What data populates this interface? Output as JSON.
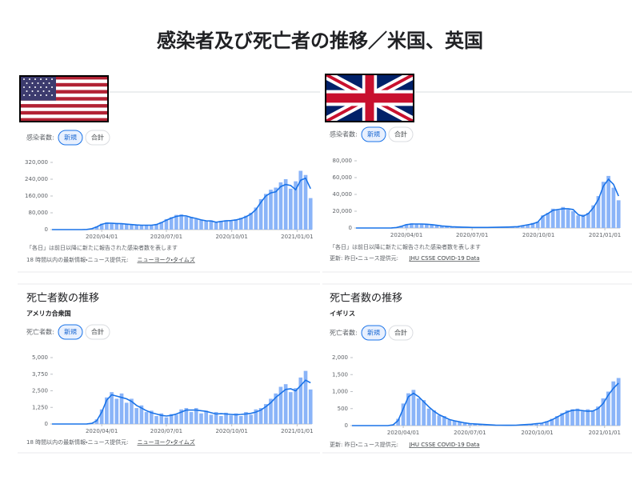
{
  "title": "感染者及び死亡者の推移／米国、英国",
  "panels": [
    {
      "filter_label": "感染者数:",
      "buttons": [
        "新規",
        "合計"
      ],
      "note": "「各日」は前日以降に新たに報告された感染者数を表します",
      "source_prefix": "18 時間以内の最新情報・ニュース提供元: ",
      "source_link": "ニューヨーク・タイムズ"
    },
    {
      "filter_label": "感染者数:",
      "buttons": [
        "新規",
        "合計"
      ],
      "note": "「各日」は前日以降に新たに報告された感染者数を表します",
      "source_prefix": "更新: 昨日・ニュース提供元: ",
      "source_link": "JHU CSSE COVID-19 Data"
    },
    {
      "heading": "死亡者数の推移",
      "region": "アメリカ合衆国",
      "filter_label": "死亡者数:",
      "buttons": [
        "新規",
        "合計"
      ],
      "source_prefix": "18 時間以内の最新情報・ニュース提供元: ",
      "source_link": "ニューヨーク・タイムズ"
    },
    {
      "heading": "死亡者数の推移",
      "region": "イギリス",
      "filter_label": "死亡者数:",
      "buttons": [
        "新規",
        "合計"
      ],
      "source_prefix": "更新: 昨日・ニュース提供元: ",
      "source_link": "JHU CSSE COVID-19 Data"
    }
  ],
  "chart_data": [
    {
      "type": "bar",
      "x": [
        "2020/01/22",
        "2020/01/29",
        "2020/02/05",
        "2020/02/12",
        "2020/02/19",
        "2020/02/26",
        "2020/03/04",
        "2020/03/11",
        "2020/03/18",
        "2020/03/25",
        "2020/04/01",
        "2020/04/08",
        "2020/04/15",
        "2020/04/22",
        "2020/04/29",
        "2020/05/06",
        "2020/05/13",
        "2020/05/20",
        "2020/05/27",
        "2020/06/03",
        "2020/06/10",
        "2020/06/17",
        "2020/06/24",
        "2020/07/01",
        "2020/07/08",
        "2020/07/15",
        "2020/07/22",
        "2020/07/29",
        "2020/08/05",
        "2020/08/12",
        "2020/08/19",
        "2020/08/26",
        "2020/09/02",
        "2020/09/09",
        "2020/09/16",
        "2020/09/23",
        "2020/09/30",
        "2020/10/07",
        "2020/10/14",
        "2020/10/21",
        "2020/10/28",
        "2020/11/04",
        "2020/11/11",
        "2020/11/18",
        "2020/11/25",
        "2020/12/02",
        "2020/12/09",
        "2020/12/16",
        "2020/12/23",
        "2020/12/30",
        "2021/01/06",
        "2021/01/13",
        "2021/01/20"
      ],
      "series": [
        {
          "color": "#8ab4f8",
          "values": [
            0,
            0,
            0,
            0,
            0,
            0,
            60,
            700,
            5000,
            15000,
            28000,
            34000,
            27000,
            31000,
            26000,
            28000,
            22000,
            24000,
            19000,
            22000,
            20000,
            27000,
            36000,
            50000,
            59000,
            70000,
            72000,
            61000,
            60000,
            50000,
            48000,
            40000,
            44000,
            33000,
            41000,
            45000,
            40000,
            49000,
            56000,
            66000,
            80000,
            105000,
            145000,
            170000,
            190000,
            200000,
            225000,
            240000,
            195000,
            230000,
            280000,
            260000,
            150000
          ]
        },
        {
          "type": "line",
          "color": "#1a73e8",
          "values": [
            0,
            0,
            0,
            0,
            0,
            0,
            50,
            600,
            4000,
            13000,
            25000,
            31000,
            30000,
            29000,
            28000,
            26000,
            24000,
            22000,
            21000,
            21000,
            21000,
            24000,
            33000,
            45000,
            55000,
            63000,
            67000,
            65000,
            58000,
            53000,
            46000,
            42000,
            41000,
            35000,
            39000,
            42000,
            43000,
            46000,
            52000,
            61000,
            74000,
            95000,
            130000,
            160000,
            175000,
            180000,
            205000,
            215000,
            210000,
            190000,
            235000,
            245000,
            195000
          ]
        }
      ],
      "xlim": [
        "2020/01/22",
        "2021/01/22"
      ],
      "xticks": [
        "2020/04/01",
        "2020/07/01",
        "2020/10/01",
        "2021/01/01"
      ],
      "ylim": [
        0,
        320000
      ],
      "yticks": [
        0,
        {
          "value": 80000,
          "label": "80,000"
        },
        {
          "value": 160000,
          "label": "160,000"
        },
        {
          "value": 240000,
          "label": "240,000"
        },
        {
          "value": 320000,
          "label": "320,000"
        }
      ]
    },
    {
      "type": "bar",
      "x": [
        "2020/01/22",
        "2020/01/29",
        "2020/02/05",
        "2020/02/12",
        "2020/02/19",
        "2020/02/26",
        "2020/03/04",
        "2020/03/11",
        "2020/03/18",
        "2020/03/25",
        "2020/04/01",
        "2020/04/08",
        "2020/04/15",
        "2020/04/22",
        "2020/04/29",
        "2020/05/06",
        "2020/05/13",
        "2020/05/20",
        "2020/05/27",
        "2020/06/03",
        "2020/06/10",
        "2020/06/17",
        "2020/06/24",
        "2020/07/01",
        "2020/07/08",
        "2020/07/15",
        "2020/07/22",
        "2020/07/29",
        "2020/08/05",
        "2020/08/12",
        "2020/08/19",
        "2020/08/26",
        "2020/09/02",
        "2020/09/09",
        "2020/09/16",
        "2020/09/23",
        "2020/09/30",
        "2020/10/07",
        "2020/10/14",
        "2020/10/21",
        "2020/10/28",
        "2020/11/04",
        "2020/11/11",
        "2020/11/18",
        "2020/11/25",
        "2020/12/02",
        "2020/12/09",
        "2020/12/16",
        "2020/12/23",
        "2020/12/30",
        "2021/01/06",
        "2021/01/13",
        "2021/01/20"
      ],
      "series": [
        {
          "color": "#8ab4f8",
          "values": [
            0,
            0,
            0,
            0,
            0,
            0,
            30,
            150,
            800,
            2500,
            4500,
            5500,
            4200,
            5000,
            4100,
            4300,
            3000,
            2700,
            1800,
            1600,
            1100,
            1100,
            800,
            800,
            600,
            700,
            750,
            800,
            900,
            1100,
            1200,
            1400,
            1800,
            3000,
            4100,
            6000,
            7500,
            15000,
            18000,
            23000,
            21000,
            25000,
            22000,
            20000,
            15000,
            16000,
            18000,
            27000,
            38000,
            55000,
            62000,
            48000,
            33000
          ]
        },
        {
          "type": "line",
          "color": "#1a73e8",
          "values": [
            0,
            0,
            0,
            0,
            0,
            0,
            20,
            100,
            600,
            2000,
            4000,
            4800,
            4800,
            4800,
            4500,
            4000,
            3200,
            2500,
            2000,
            1500,
            1200,
            1000,
            900,
            700,
            650,
            650,
            700,
            750,
            850,
            1000,
            1100,
            1300,
            1600,
            2800,
            3800,
            5000,
            7000,
            14000,
            17000,
            21000,
            22000,
            23000,
            23000,
            22000,
            16000,
            14000,
            17000,
            24000,
            34000,
            50000,
            58000,
            52000,
            38000
          ]
        }
      ],
      "xlim": [
        "2020/01/22",
        "2021/01/22"
      ],
      "xticks": [
        "2020/04/01",
        "2020/07/01",
        "2020/10/01",
        "2021/01/01"
      ],
      "ylim": [
        0,
        80000
      ],
      "yticks": [
        0,
        {
          "value": 20000,
          "label": "20,000"
        },
        {
          "value": 40000,
          "label": "40,000"
        },
        {
          "value": 60000,
          "label": "60,000"
        },
        {
          "value": 80000,
          "label": "80,000"
        }
      ]
    },
    {
      "type": "bar",
      "x": [
        "2020/01/22",
        "2020/01/29",
        "2020/02/05",
        "2020/02/12",
        "2020/02/19",
        "2020/02/26",
        "2020/03/04",
        "2020/03/11",
        "2020/03/18",
        "2020/03/25",
        "2020/04/01",
        "2020/04/08",
        "2020/04/15",
        "2020/04/22",
        "2020/04/29",
        "2020/05/06",
        "2020/05/13",
        "2020/05/20",
        "2020/05/27",
        "2020/06/03",
        "2020/06/10",
        "2020/06/17",
        "2020/06/24",
        "2020/07/01",
        "2020/07/08",
        "2020/07/15",
        "2020/07/22",
        "2020/07/29",
        "2020/08/05",
        "2020/08/12",
        "2020/08/19",
        "2020/08/26",
        "2020/09/02",
        "2020/09/09",
        "2020/09/16",
        "2020/09/23",
        "2020/09/30",
        "2020/10/07",
        "2020/10/14",
        "2020/10/21",
        "2020/10/28",
        "2020/11/04",
        "2020/11/11",
        "2020/11/18",
        "2020/11/25",
        "2020/12/02",
        "2020/12/09",
        "2020/12/16",
        "2020/12/23",
        "2020/12/30",
        "2021/01/06",
        "2021/01/13",
        "2021/01/20"
      ],
      "series": [
        {
          "color": "#8ab4f8",
          "values": [
            0,
            0,
            0,
            0,
            0,
            0,
            0,
            8,
            80,
            350,
            1100,
            2000,
            2400,
            1900,
            2300,
            1600,
            1900,
            1200,
            1400,
            900,
            1000,
            600,
            800,
            500,
            750,
            700,
            1100,
            1200,
            900,
            1200,
            800,
            1000,
            700,
            900,
            600,
            850,
            650,
            800,
            600,
            900,
            700,
            1100,
            1200,
            1500,
            1900,
            2300,
            2800,
            3000,
            2400,
            2700,
            3500,
            4000,
            2600
          ]
        },
        {
          "type": "line",
          "color": "#1a73e8",
          "values": [
            0,
            0,
            0,
            0,
            0,
            0,
            0,
            5,
            50,
            250,
            900,
            1800,
            2200,
            2100,
            2000,
            1900,
            1700,
            1400,
            1200,
            1000,
            850,
            750,
            650,
            600,
            650,
            750,
            900,
            1050,
            1050,
            1050,
            1000,
            950,
            850,
            750,
            780,
            750,
            720,
            700,
            720,
            760,
            800,
            900,
            1050,
            1300,
            1600,
            2000,
            2300,
            2600,
            2650,
            2500,
            2900,
            3300,
            3100
          ]
        }
      ],
      "xlim": [
        "2020/01/22",
        "2021/01/22"
      ],
      "xticks": [
        "2020/04/01",
        "2020/07/01",
        "2020/10/01",
        "2021/01/01"
      ],
      "ylim": [
        0,
        5000
      ],
      "yticks": [
        0,
        {
          "value": 1250,
          "label": "1,250"
        },
        {
          "value": 2500,
          "label": "2,500"
        },
        {
          "value": 3750,
          "label": "3,750"
        },
        {
          "value": 5000,
          "label": "5,000"
        }
      ]
    },
    {
      "type": "bar",
      "x": [
        "2020/01/22",
        "2020/01/29",
        "2020/02/05",
        "2020/02/12",
        "2020/02/19",
        "2020/02/26",
        "2020/03/04",
        "2020/03/11",
        "2020/03/18",
        "2020/03/25",
        "2020/04/01",
        "2020/04/08",
        "2020/04/15",
        "2020/04/22",
        "2020/04/29",
        "2020/05/06",
        "2020/05/13",
        "2020/05/20",
        "2020/05/27",
        "2020/06/03",
        "2020/06/10",
        "2020/06/17",
        "2020/06/24",
        "2020/07/01",
        "2020/07/08",
        "2020/07/15",
        "2020/07/22",
        "2020/07/29",
        "2020/08/05",
        "2020/08/12",
        "2020/08/19",
        "2020/08/26",
        "2020/09/02",
        "2020/09/09",
        "2020/09/16",
        "2020/09/23",
        "2020/09/30",
        "2020/10/07",
        "2020/10/14",
        "2020/10/21",
        "2020/10/28",
        "2020/11/04",
        "2020/11/11",
        "2020/11/18",
        "2020/11/25",
        "2020/12/02",
        "2020/12/09",
        "2020/12/16",
        "2020/12/23",
        "2020/12/30",
        "2021/01/06",
        "2021/01/13",
        "2021/01/20"
      ],
      "series": [
        {
          "color": "#8ab4f8",
          "values": [
            0,
            0,
            0,
            0,
            0,
            0,
            0,
            1,
            30,
            200,
            650,
            950,
            1050,
            800,
            750,
            500,
            450,
            300,
            280,
            170,
            150,
            100,
            90,
            50,
            60,
            30,
            35,
            15,
            18,
            10,
            12,
            8,
            15,
            22,
            35,
            45,
            70,
            80,
            130,
            200,
            280,
            370,
            450,
            480,
            500,
            420,
            480,
            450,
            560,
            800,
            1000,
            1300,
            1400
          ]
        },
        {
          "type": "line",
          "color": "#1a73e8",
          "values": [
            0,
            0,
            0,
            0,
            0,
            0,
            0,
            1,
            20,
            150,
            500,
            850,
            950,
            850,
            700,
            550,
            420,
            320,
            250,
            180,
            140,
            110,
            80,
            60,
            50,
            40,
            30,
            20,
            15,
            12,
            10,
            10,
            12,
            20,
            30,
            40,
            60,
            70,
            110,
            170,
            250,
            330,
            400,
            450,
            460,
            440,
            420,
            430,
            500,
            650,
            900,
            1100,
            1250
          ]
        }
      ],
      "xlim": [
        "2020/01/22",
        "2021/01/22"
      ],
      "xticks": [
        "2020/04/01",
        "2020/07/01",
        "2020/10/01",
        "2021/01/01"
      ],
      "ylim": [
        0,
        2000
      ],
      "yticks": [
        0,
        {
          "value": 500,
          "label": "500"
        },
        {
          "value": 1000,
          "label": "1,000"
        },
        {
          "value": 1500,
          "label": "1,500"
        },
        {
          "value": 2000,
          "label": "2,000"
        }
      ]
    }
  ]
}
